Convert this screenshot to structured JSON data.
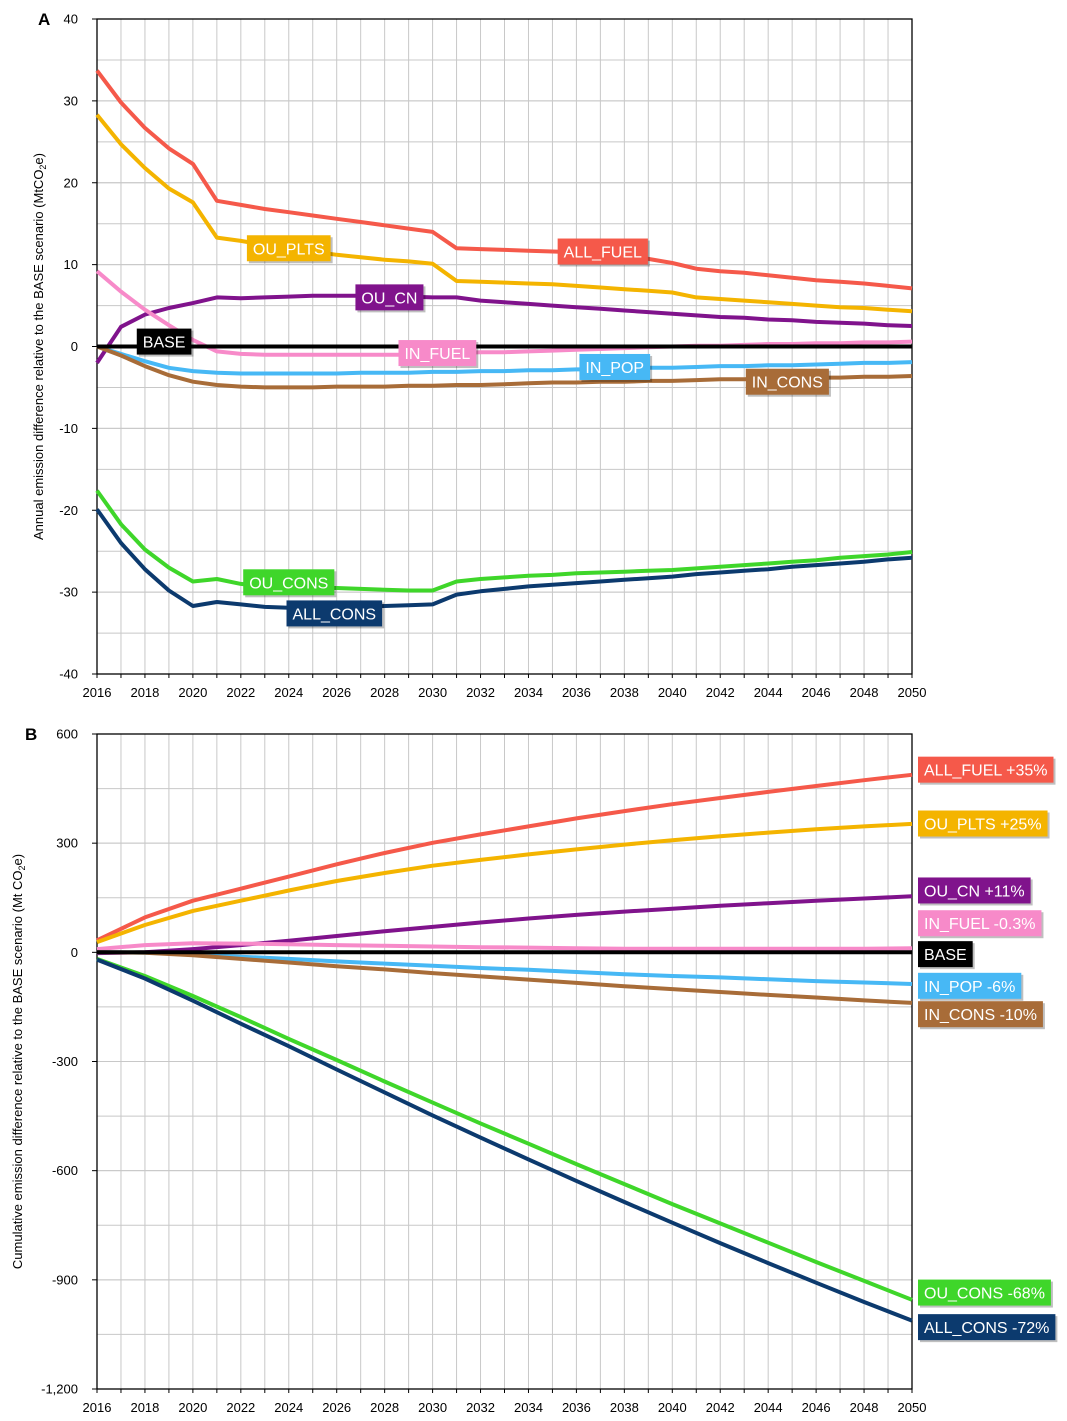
{
  "chart_data": [
    {
      "type": "line",
      "panel_label": "A",
      "title": "",
      "xlabel": "",
      "ylabel": "Annual emission difference relative to the BASE scenario (MtCO2e)",
      "ylabel_parts": {
        "pre": "Annual emission difference relative to the BASE scenario (MtCO",
        "sub": "2",
        "post": "e)"
      },
      "xlim": [
        2016,
        2050
      ],
      "ylim": [
        -40,
        40
      ],
      "xticks": [
        2016,
        2018,
        2020,
        2022,
        2024,
        2026,
        2028,
        2030,
        2032,
        2034,
        2036,
        2038,
        2040,
        2042,
        2044,
        2046,
        2048,
        2050
      ],
      "yticks": [
        -40,
        -30,
        -20,
        -10,
        0,
        10,
        20,
        30,
        40
      ],
      "grid": true,
      "labels": [
        {
          "text": "ALL_FUEL",
          "series": "ALL_FUEL",
          "x": 2037.1,
          "y": 11.6
        },
        {
          "text": "OU_PLTS",
          "series": "OU_PLTS",
          "x": 2024.0,
          "y": 12.0
        },
        {
          "text": "OU_CN",
          "series": "OU_CN",
          "x": 2028.2,
          "y": 6.0
        },
        {
          "text": "BASE",
          "series": "BASE",
          "x": 2018.8,
          "y": 0.6
        },
        {
          "text": "IN_FUEL",
          "series": "IN_FUEL",
          "x": 2030.2,
          "y": -0.8
        },
        {
          "text": "IN_POP",
          "series": "IN_POP",
          "x": 2037.6,
          "y": -2.5
        },
        {
          "text": "IN_CONS",
          "series": "IN_CONS",
          "x": 2044.8,
          "y": -4.3
        },
        {
          "text": "OU_CONS",
          "series": "OU_CONS",
          "x": 2024.0,
          "y": -28.8
        },
        {
          "text": "ALL_CONS",
          "series": "ALL_CONS",
          "x": 2025.9,
          "y": -32.6
        }
      ],
      "x": [
        2016,
        2017,
        2018,
        2019,
        2020,
        2021,
        2022,
        2023,
        2024,
        2025,
        2026,
        2027,
        2028,
        2029,
        2030,
        2031,
        2032,
        2033,
        2034,
        2035,
        2036,
        2037,
        2038,
        2039,
        2040,
        2041,
        2042,
        2043,
        2044,
        2045,
        2046,
        2047,
        2048,
        2049,
        2050
      ],
      "series": [
        {
          "name": "ALL_FUEL",
          "color": "#f5594a",
          "values": [
            33.7,
            29.8,
            26.7,
            24.2,
            22.3,
            17.8,
            17.3,
            16.8,
            16.4,
            16.0,
            15.6,
            15.2,
            14.8,
            14.4,
            14.0,
            12.0,
            11.9,
            11.8,
            11.7,
            11.6,
            11.5,
            11.3,
            11.0,
            10.7,
            10.2,
            9.5,
            9.2,
            9.0,
            8.7,
            8.4,
            8.1,
            7.9,
            7.7,
            7.4,
            7.1
          ]
        },
        {
          "name": "OU_PLTS",
          "color": "#f4b400",
          "values": [
            28.3,
            24.7,
            21.8,
            19.3,
            17.6,
            13.3,
            12.9,
            12.4,
            12.0,
            11.6,
            11.2,
            10.9,
            10.6,
            10.4,
            10.1,
            8.0,
            7.9,
            7.8,
            7.7,
            7.6,
            7.4,
            7.2,
            7.0,
            6.8,
            6.6,
            6.0,
            5.8,
            5.6,
            5.4,
            5.2,
            5.0,
            4.8,
            4.7,
            4.5,
            4.3
          ]
        },
        {
          "name": "OU_CN",
          "color": "#80138c",
          "values": [
            -2.0,
            2.4,
            3.9,
            4.7,
            5.3,
            6.0,
            5.9,
            6.0,
            6.1,
            6.2,
            6.2,
            6.2,
            6.2,
            6.1,
            6.0,
            6.0,
            5.6,
            5.4,
            5.2,
            5.0,
            4.8,
            4.6,
            4.4,
            4.2,
            4.0,
            3.8,
            3.6,
            3.5,
            3.3,
            3.2,
            3.0,
            2.9,
            2.8,
            2.6,
            2.5
          ]
        },
        {
          "name": "IN_FUEL",
          "color": "#f78ac9",
          "values": [
            9.2,
            6.7,
            4.5,
            2.6,
            0.8,
            -0.6,
            -0.9,
            -1.0,
            -1.0,
            -1.0,
            -1.0,
            -1.0,
            -1.0,
            -1.0,
            -0.9,
            -0.8,
            -0.7,
            -0.7,
            -0.6,
            -0.5,
            -0.4,
            -0.3,
            -0.2,
            -0.1,
            0.0,
            0.1,
            0.1,
            0.2,
            0.3,
            0.3,
            0.4,
            0.4,
            0.5,
            0.5,
            0.6
          ]
        },
        {
          "name": "IN_POP",
          "color": "#47b8f5",
          "values": [
            0.0,
            -0.9,
            -1.8,
            -2.6,
            -3.0,
            -3.2,
            -3.3,
            -3.3,
            -3.3,
            -3.3,
            -3.3,
            -3.2,
            -3.2,
            -3.2,
            -3.1,
            -3.1,
            -3.0,
            -3.0,
            -2.9,
            -2.9,
            -2.8,
            -2.8,
            -2.7,
            -2.6,
            -2.6,
            -2.5,
            -2.4,
            -2.4,
            -2.3,
            -2.3,
            -2.2,
            -2.1,
            -2.0,
            -2.0,
            -1.9
          ]
        },
        {
          "name": "IN_CONS",
          "color": "#a86c38",
          "values": [
            0.0,
            -1.1,
            -2.4,
            -3.5,
            -4.3,
            -4.7,
            -4.9,
            -5.0,
            -5.0,
            -5.0,
            -4.9,
            -4.9,
            -4.9,
            -4.8,
            -4.8,
            -4.7,
            -4.7,
            -4.6,
            -4.5,
            -4.4,
            -4.4,
            -4.3,
            -4.3,
            -4.2,
            -4.2,
            -4.1,
            -4.0,
            -4.0,
            -3.9,
            -3.9,
            -3.8,
            -3.8,
            -3.7,
            -3.7,
            -3.6
          ]
        },
        {
          "name": "OU_CONS",
          "color": "#3fd62a",
          "values": [
            -17.6,
            -21.7,
            -24.8,
            -27.0,
            -28.7,
            -28.4,
            -29.0,
            -29.3,
            -29.4,
            -29.5,
            -29.5,
            -29.6,
            -29.7,
            -29.8,
            -29.8,
            -28.7,
            -28.4,
            -28.2,
            -28.0,
            -27.9,
            -27.7,
            -27.6,
            -27.5,
            -27.4,
            -27.3,
            -27.1,
            -26.9,
            -26.7,
            -26.5,
            -26.3,
            -26.1,
            -25.8,
            -25.6,
            -25.4,
            -25.1
          ]
        },
        {
          "name": "ALL_CONS",
          "color": "#0c3a6e",
          "values": [
            -19.9,
            -24.0,
            -27.2,
            -29.8,
            -31.7,
            -31.2,
            -31.5,
            -31.8,
            -31.9,
            -31.9,
            -31.8,
            -31.8,
            -31.7,
            -31.6,
            -31.5,
            -30.3,
            -29.9,
            -29.6,
            -29.3,
            -29.1,
            -28.9,
            -28.7,
            -28.5,
            -28.3,
            -28.1,
            -27.8,
            -27.6,
            -27.4,
            -27.2,
            -26.9,
            -26.7,
            -26.5,
            -26.3,
            -26.0,
            -25.8
          ]
        },
        {
          "name": "BASE",
          "color": "#000000",
          "values": [
            0,
            0,
            0,
            0,
            0,
            0,
            0,
            0,
            0,
            0,
            0,
            0,
            0,
            0,
            0,
            0,
            0,
            0,
            0,
            0,
            0,
            0,
            0,
            0,
            0,
            0,
            0,
            0,
            0,
            0,
            0,
            0,
            0,
            0,
            0
          ]
        }
      ]
    },
    {
      "type": "line",
      "panel_label": "B",
      "title": "",
      "xlabel": "",
      "ylabel": "Cumulative emission difference relative to the BASE scenario (Mt CO2e)",
      "ylabel_parts": {
        "pre": "Cumulative emission difference relative to the BASE scenario (Mt CO",
        "sub": "2",
        "post": "e)"
      },
      "xlim": [
        2016,
        2050
      ],
      "ylim": [
        -1200,
        600
      ],
      "xticks": [
        2016,
        2018,
        2020,
        2022,
        2024,
        2026,
        2028,
        2030,
        2032,
        2034,
        2036,
        2038,
        2040,
        2042,
        2044,
        2046,
        2048,
        2050
      ],
      "yticks": [
        -1200,
        -900,
        -600,
        -300,
        0,
        300,
        600
      ],
      "ytick_labels": [
        "-1,200",
        "-900",
        "-600",
        "-300",
        "0",
        "300",
        "600"
      ],
      "grid": true,
      "labels": [
        {
          "text": "ALL_FUEL +35%",
          "series": "ALL_FUEL",
          "y": 502
        },
        {
          "text": "OU_PLTS +25%",
          "series": "OU_PLTS",
          "y": 354
        },
        {
          "text": "OU_CN +11%",
          "series": "OU_CN",
          "y": 170
        },
        {
          "text": "IN_FUEL -0.3%",
          "series": "IN_FUEL",
          "y": 80
        },
        {
          "text": "BASE",
          "series": "BASE",
          "y": -5
        },
        {
          "text": "IN_POP -6%",
          "series": "IN_POP",
          "y": -92
        },
        {
          "text": "IN_CONS -10%",
          "series": "IN_CONS",
          "y": -170
        },
        {
          "text": "OU_CONS -68%",
          "series": "OU_CONS",
          "y": -935
        },
        {
          "text": "ALL_CONS -72%",
          "series": "ALL_CONS",
          "y": -1030
        }
      ],
      "x": [
        2016,
        2018,
        2020,
        2022,
        2024,
        2026,
        2028,
        2030,
        2032,
        2034,
        2036,
        2038,
        2040,
        2042,
        2044,
        2046,
        2048,
        2050
      ],
      "series": [
        {
          "name": "ALL_FUEL",
          "color": "#f5594a",
          "values": [
            33,
            96,
            142,
            175,
            208,
            242,
            273,
            301,
            324,
            346,
            368,
            388,
            407,
            424,
            441,
            457,
            473,
            488
          ]
        },
        {
          "name": "OU_PLTS",
          "color": "#f4b400",
          "values": [
            28,
            75,
            114,
            142,
            170,
            196,
            218,
            238,
            254,
            269,
            283,
            296,
            308,
            319,
            329,
            338,
            346,
            353
          ]
        },
        {
          "name": "OU_CN",
          "color": "#80138c",
          "values": [
            -2,
            0,
            9,
            20,
            32,
            45,
            58,
            70,
            82,
            93,
            103,
            112,
            120,
            128,
            135,
            142,
            148,
            154
          ]
        },
        {
          "name": "IN_FUEL",
          "color": "#f78ac9",
          "values": [
            9,
            20,
            25,
            24,
            22,
            20,
            18,
            16,
            14,
            13,
            11,
            10,
            10,
            10,
            10,
            10,
            10,
            11
          ]
        },
        {
          "name": "IN_POP",
          "color": "#47b8f5",
          "values": [
            0,
            -1,
            -5,
            -12,
            -18,
            -25,
            -31,
            -37,
            -43,
            -48,
            -54,
            -60,
            -65,
            -69,
            -74,
            -79,
            -83,
            -87
          ]
        },
        {
          "name": "IN_CONS",
          "color": "#a86c38",
          "values": [
            0,
            -1,
            -8,
            -18,
            -28,
            -38,
            -47,
            -57,
            -66,
            -75,
            -84,
            -93,
            -101,
            -109,
            -117,
            -124,
            -132,
            -139
          ]
        },
        {
          "name": "OU_CONS",
          "color": "#3fd62a",
          "values": [
            -18,
            -65,
            -120,
            -178,
            -238,
            -296,
            -355,
            -413,
            -470,
            -526,
            -582,
            -637,
            -692,
            -745,
            -798,
            -851,
            -903,
            -955
          ]
        },
        {
          "name": "ALL_CONS",
          "color": "#0c3a6e",
          "values": [
            -20,
            -72,
            -133,
            -196,
            -258,
            -322,
            -385,
            -448,
            -509,
            -569,
            -628,
            -686,
            -743,
            -799,
            -854,
            -908,
            -961,
            -1012
          ]
        },
        {
          "name": "BASE",
          "color": "#000000",
          "values": [
            0,
            0,
            0,
            0,
            0,
            0,
            0,
            0,
            0,
            0,
            0,
            0,
            0,
            0,
            0,
            0,
            0,
            0
          ]
        }
      ]
    }
  ]
}
